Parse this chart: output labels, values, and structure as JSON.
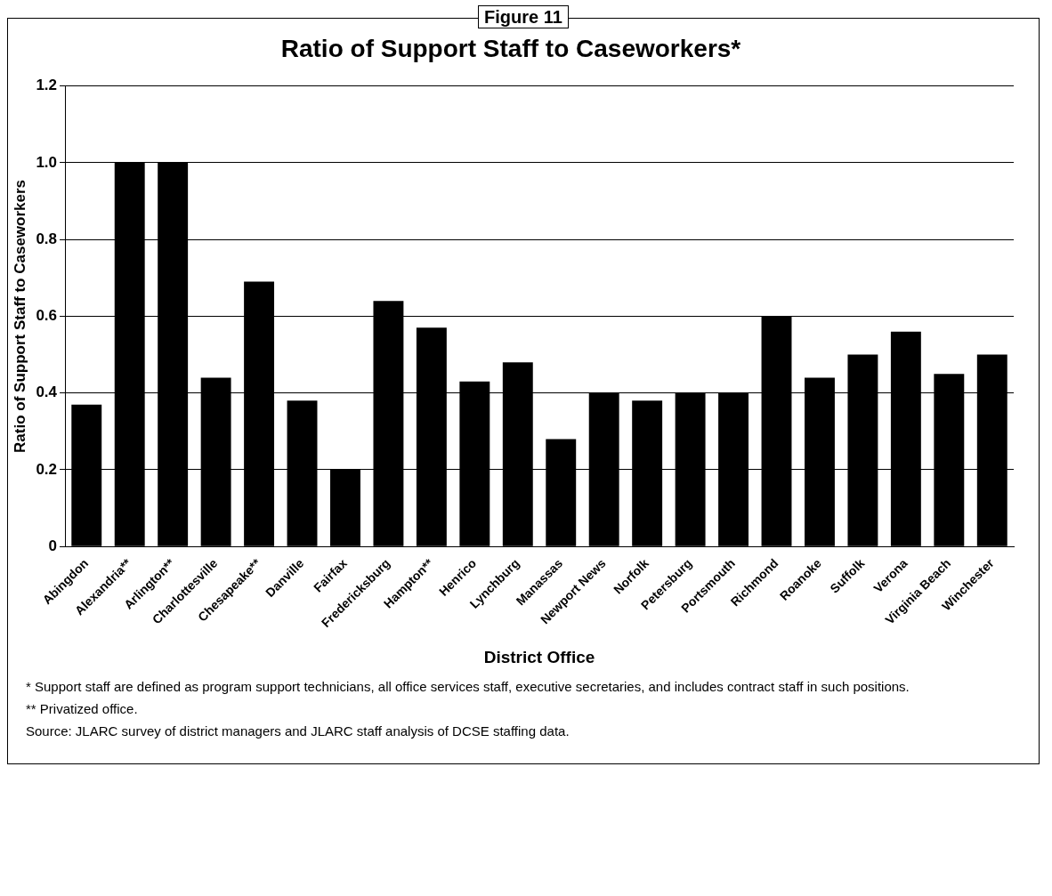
{
  "chart_data": {
    "type": "bar",
    "title": "Ratio of Support Staff to Caseworkers*",
    "xlabel": "District Office",
    "ylabel": "Ratio of Support Staff to Caseworkers",
    "categories": [
      "Abingdon",
      "Alexandria**",
      "Arlington**",
      "Charlottesville",
      "Chesapeake**",
      "Danville",
      "Fairfax",
      "Fredericksburg",
      "Hampton**",
      "Henrico",
      "Lynchburg",
      "Manassas",
      "Newport News",
      "Norfolk",
      "Petersburg",
      "Portsmouth",
      "Richmond",
      "Roanoke",
      "Suffolk",
      "Verona",
      "Virginia Beach",
      "Winchester"
    ],
    "values": [
      0.37,
      1.0,
      1.0,
      0.44,
      0.69,
      0.38,
      0.2,
      0.64,
      0.57,
      0.43,
      0.48,
      0.28,
      0.4,
      0.38,
      0.4,
      0.4,
      0.6,
      0.44,
      0.5,
      0.56,
      0.45,
      0.5
    ],
    "color": "#000000",
    "ylim": [
      0,
      1.2
    ],
    "yticks": [
      0,
      0.2,
      0.4,
      0.6,
      0.8,
      {
        "value": 1,
        "label": "1.0"
      },
      1.2
    ],
    "grid": "y",
    "legend": false,
    "annotations": [
      "Figure 11",
      "* Support staff are defined as program support technicians, all office services staff, executive secretaries, and includes contract staff in such positions.",
      "** Privatized office.",
      "Source: JLARC survey of district managers and JLARC staff analysis of DCSE staffing data."
    ]
  }
}
